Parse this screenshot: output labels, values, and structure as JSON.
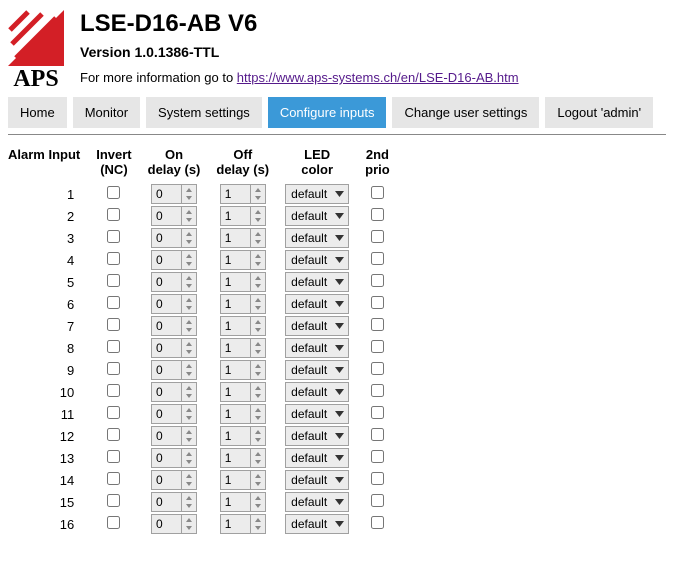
{
  "header": {
    "logo_text": "APS",
    "title": "LSE-D16-AB V6",
    "version": "Version 1.0.1386-TTL",
    "info_prefix": "For more information go to ",
    "info_link_text": "https://www.aps-systems.ch/en/LSE-D16-AB.htm",
    "logo_colors": {
      "red": "#d31f26",
      "white": "#ffffff",
      "text": "#000000"
    }
  },
  "nav": {
    "items": [
      {
        "label": "Home",
        "active": false
      },
      {
        "label": "Monitor",
        "active": false
      },
      {
        "label": "System settings",
        "active": false
      },
      {
        "label": "Configure inputs",
        "active": true
      },
      {
        "label": "Change user settings",
        "active": false
      },
      {
        "label": "Logout 'admin'",
        "active": false
      }
    ],
    "active_bg": "#3b99d8",
    "inactive_bg": "#e6e6e6"
  },
  "table": {
    "headers": {
      "alarm": "Alarm Input",
      "invert": "Invert\n(NC)",
      "on_delay": "On\ndelay (s)",
      "off_delay": "Off\ndelay (s)",
      "led": "LED\ncolor",
      "prio": "2nd\nprio"
    },
    "led_options": [
      "default"
    ],
    "rows": [
      {
        "n": "1",
        "invert": false,
        "on": "0",
        "off": "1",
        "led": "default",
        "prio": false
      },
      {
        "n": "2",
        "invert": false,
        "on": "0",
        "off": "1",
        "led": "default",
        "prio": false
      },
      {
        "n": "3",
        "invert": false,
        "on": "0",
        "off": "1",
        "led": "default",
        "prio": false
      },
      {
        "n": "4",
        "invert": false,
        "on": "0",
        "off": "1",
        "led": "default",
        "prio": false
      },
      {
        "n": "5",
        "invert": false,
        "on": "0",
        "off": "1",
        "led": "default",
        "prio": false
      },
      {
        "n": "6",
        "invert": false,
        "on": "0",
        "off": "1",
        "led": "default",
        "prio": false
      },
      {
        "n": "7",
        "invert": false,
        "on": "0",
        "off": "1",
        "led": "default",
        "prio": false
      },
      {
        "n": "8",
        "invert": false,
        "on": "0",
        "off": "1",
        "led": "default",
        "prio": false
      },
      {
        "n": "9",
        "invert": false,
        "on": "0",
        "off": "1",
        "led": "default",
        "prio": false
      },
      {
        "n": "10",
        "invert": false,
        "on": "0",
        "off": "1",
        "led": "default",
        "prio": false
      },
      {
        "n": "11",
        "invert": false,
        "on": "0",
        "off": "1",
        "led": "default",
        "prio": false
      },
      {
        "n": "12",
        "invert": false,
        "on": "0",
        "off": "1",
        "led": "default",
        "prio": false
      },
      {
        "n": "13",
        "invert": false,
        "on": "0",
        "off": "1",
        "led": "default",
        "prio": false
      },
      {
        "n": "14",
        "invert": false,
        "on": "0",
        "off": "1",
        "led": "default",
        "prio": false
      },
      {
        "n": "15",
        "invert": false,
        "on": "0",
        "off": "1",
        "led": "default",
        "prio": false
      },
      {
        "n": "16",
        "invert": false,
        "on": "0",
        "off": "1",
        "led": "default",
        "prio": false
      }
    ]
  }
}
